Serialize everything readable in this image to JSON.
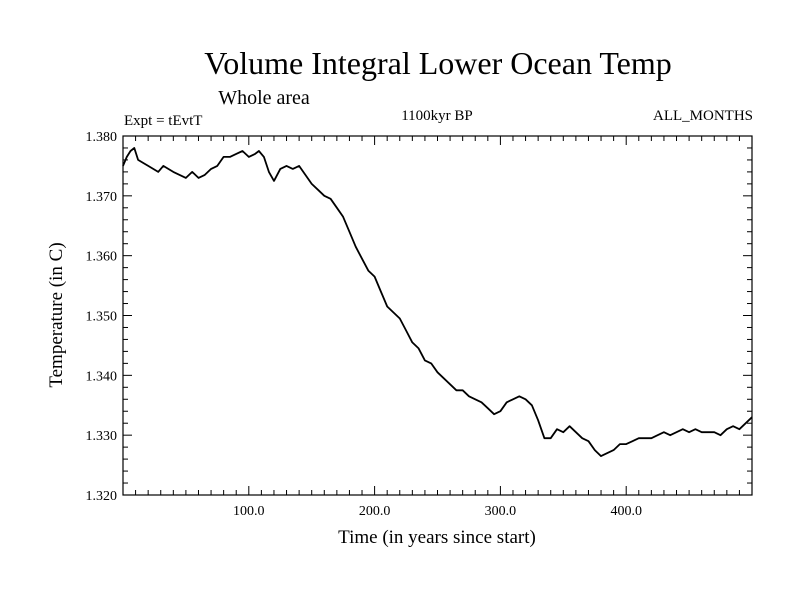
{
  "chart_data": {
    "type": "line",
    "title": "Volume Integral Lower Ocean Temp",
    "subtitle": "Whole area",
    "left_label": "Expt = tEvtT",
    "center_label": "1100kyr BP",
    "right_label": "ALL_MONTHS",
    "xlabel": "Time (in years since start)",
    "ylabel": "Temperature (in C)",
    "xlim": [
      0,
      500
    ],
    "ylim": [
      1.32,
      1.38
    ],
    "xticks": [
      100,
      200,
      300,
      400
    ],
    "xtick_labels": [
      "100.0",
      "200.0",
      "300.0",
      "400.0"
    ],
    "yticks": [
      1.32,
      1.33,
      1.34,
      1.35,
      1.36,
      1.37,
      1.38
    ],
    "ytick_labels": [
      "1.320",
      "1.330",
      "1.340",
      "1.350",
      "1.360",
      "1.370",
      "1.380"
    ],
    "series": [
      {
        "name": "Temperature",
        "x": [
          0,
          3,
          6,
          9,
          12,
          16,
          20,
          24,
          28,
          32,
          36,
          40,
          45,
          50,
          55,
          60,
          65,
          70,
          75,
          80,
          85,
          90,
          95,
          100,
          105,
          108,
          112,
          116,
          120,
          125,
          130,
          135,
          140,
          145,
          150,
          155,
          160,
          165,
          170,
          175,
          180,
          185,
          190,
          195,
          200,
          205,
          210,
          215,
          220,
          225,
          230,
          235,
          240,
          245,
          250,
          255,
          260,
          265,
          270,
          275,
          280,
          285,
          290,
          295,
          300,
          305,
          310,
          315,
          320,
          325,
          330,
          335,
          340,
          345,
          350,
          355,
          360,
          365,
          370,
          375,
          380,
          385,
          390,
          395,
          400,
          405,
          410,
          415,
          420,
          425,
          430,
          435,
          440,
          445,
          450,
          455,
          460,
          465,
          470,
          475,
          480,
          485,
          490,
          495,
          500
        ],
        "y": [
          1.375,
          1.3765,
          1.3775,
          1.378,
          1.376,
          1.3755,
          1.375,
          1.3745,
          1.374,
          1.375,
          1.3745,
          1.374,
          1.3735,
          1.373,
          1.374,
          1.373,
          1.3735,
          1.3745,
          1.375,
          1.3765,
          1.3765,
          1.377,
          1.3775,
          1.3765,
          1.377,
          1.3775,
          1.3765,
          1.374,
          1.3725,
          1.3745,
          1.375,
          1.3745,
          1.375,
          1.3735,
          1.372,
          1.371,
          1.37,
          1.3695,
          1.368,
          1.3665,
          1.364,
          1.3615,
          1.3595,
          1.3575,
          1.3565,
          1.354,
          1.3515,
          1.3505,
          1.3495,
          1.3475,
          1.3455,
          1.3445,
          1.3425,
          1.342,
          1.3405,
          1.3395,
          1.3385,
          1.3375,
          1.3375,
          1.3365,
          1.336,
          1.3355,
          1.3345,
          1.3335,
          1.334,
          1.3355,
          1.336,
          1.3365,
          1.336,
          1.335,
          1.3325,
          1.3295,
          1.3295,
          1.331,
          1.3305,
          1.3315,
          1.3305,
          1.3295,
          1.329,
          1.3275,
          1.3265,
          1.327,
          1.3275,
          1.3285,
          1.3285,
          1.329,
          1.3295,
          1.3295,
          1.3295,
          1.33,
          1.3305,
          1.33,
          1.3305,
          1.331,
          1.3305,
          1.331,
          1.3305,
          1.3305,
          1.3305,
          1.33,
          1.331,
          1.3315,
          1.331,
          1.332,
          1.333
        ]
      }
    ]
  }
}
